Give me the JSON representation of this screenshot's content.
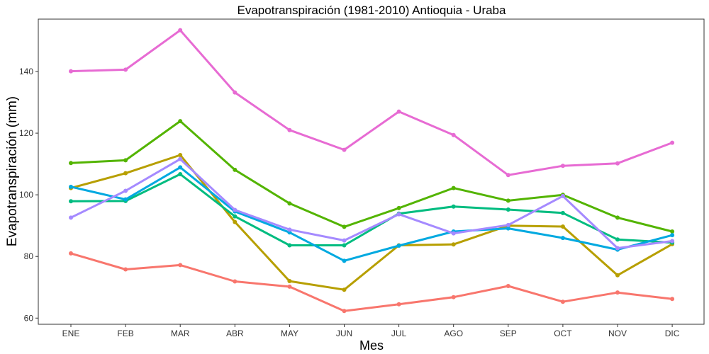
{
  "chart_data": {
    "type": "line",
    "title": "Evapotranspiración (1981-2010)  Antioquia - Uraba",
    "xlabel": "Mes",
    "ylabel": "Evapotranspiración (mm)",
    "categories": [
      "ENE",
      "FEB",
      "MAR",
      "ABR",
      "MAY",
      "JUN",
      "JUL",
      "AGO",
      "SEP",
      "OCT",
      "NOV",
      "DIC"
    ],
    "ylim": [
      58,
      157
    ],
    "yticks": [
      "60",
      "80",
      "100",
      "120",
      "140"
    ],
    "grid": false,
    "legend": "none",
    "series": [
      {
        "color": "#F8766D",
        "values": [
          81.0,
          75.8,
          77.2,
          71.9,
          70.2,
          62.3,
          64.5,
          66.8,
          70.4,
          65.3,
          68.3,
          66.2
        ]
      },
      {
        "color": "#B79F00",
        "values": [
          102.2,
          107.0,
          112.9,
          91.2,
          72.0,
          69.2,
          83.6,
          83.9,
          90.0,
          89.7,
          73.9,
          84.0
        ]
      },
      {
        "color": "#53B400",
        "values": [
          110.3,
          111.2,
          123.9,
          108.1,
          97.2,
          89.6,
          95.7,
          102.2,
          98.1,
          100.0,
          92.6,
          88.1
        ]
      },
      {
        "color": "#00BC80",
        "values": [
          97.9,
          98.0,
          106.7,
          93.0,
          83.6,
          83.6,
          93.9,
          96.2,
          95.2,
          94.1,
          85.5,
          84.5
        ]
      },
      {
        "color": "#00A9E0",
        "values": [
          102.6,
          98.5,
          108.9,
          94.6,
          87.8,
          78.6,
          83.5,
          88.1,
          89.1,
          86.0,
          82.2,
          86.9
        ]
      },
      {
        "color": "#A58AFF",
        "values": [
          92.6,
          101.3,
          111.6,
          95.1,
          88.7,
          85.2,
          93.7,
          87.5,
          90.2,
          99.6,
          82.7,
          85.0
        ]
      },
      {
        "color": "#E76BD3",
        "values": [
          140.1,
          140.6,
          153.4,
          133.2,
          121.0,
          114.6,
          127.0,
          119.4,
          106.4,
          109.4,
          110.2,
          116.9
        ]
      }
    ]
  }
}
